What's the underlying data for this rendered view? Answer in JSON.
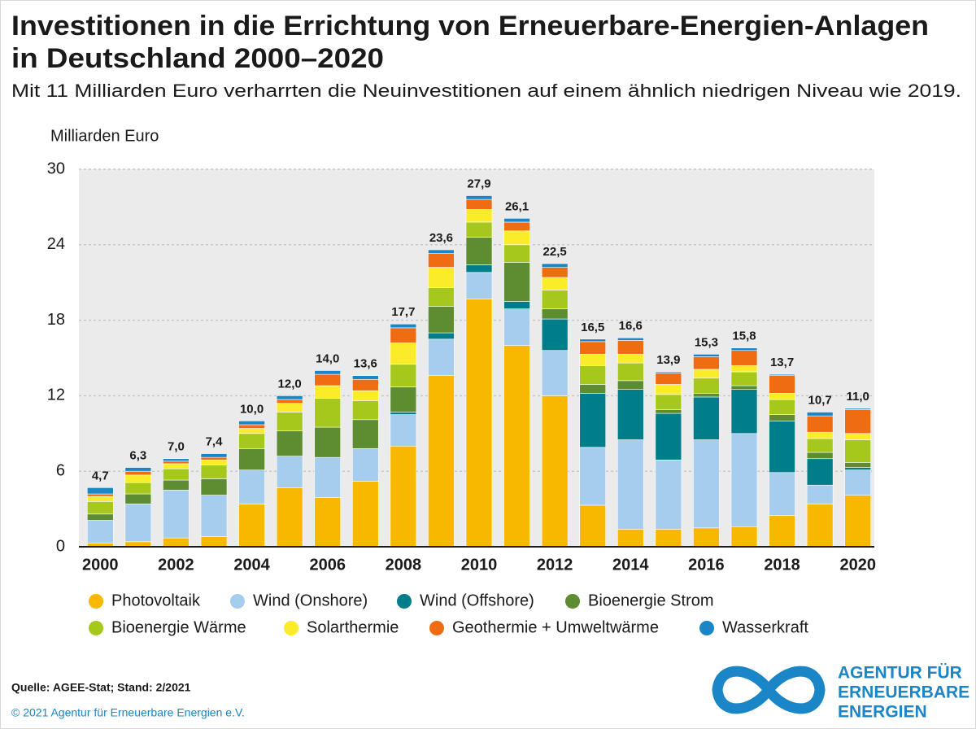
{
  "chart_data": {
    "type": "stacked_bar",
    "title_lines": [
      "Investitionen in die Errichtung von Erneuerbare-Energien-Anlagen",
      "in Deutschland 2000–2020"
    ],
    "subtitle": "Mit 11 Milliarden Euro verharrten die Neuinvestitionen auf einem ähnlich niedrigen Niveau wie 2019.",
    "y_axis_label": "Milliarden Euro",
    "categories": [
      "2000",
      null,
      "2002",
      null,
      "2004",
      null,
      "2006",
      null,
      "2008",
      null,
      "2010",
      null,
      "2012",
      null,
      "2014",
      null,
      "2016",
      null,
      "2018",
      null,
      "2020"
    ],
    "ylim": [
      0,
      30
    ],
    "yticks": [
      0,
      6,
      12,
      18,
      24,
      30
    ],
    "grid": true,
    "series": [
      {
        "name": "Photovoltaik",
        "color": "#f9b800",
        "values": [
          0.3,
          0.4,
          0.7,
          0.8,
          3.4,
          4.7,
          3.9,
          5.2,
          8.0,
          13.6,
          19.7,
          16.0,
          12.0,
          3.3,
          1.4,
          1.4,
          1.5,
          1.6,
          2.5,
          3.4,
          4.1
        ]
      },
      {
        "name": "Wind (Onshore)",
        "color": "#a6cdee",
        "values": [
          1.8,
          3.0,
          3.8,
          3.3,
          2.7,
          2.5,
          3.2,
          2.6,
          2.5,
          2.9,
          2.1,
          2.9,
          3.6,
          4.6,
          7.1,
          5.5,
          7.0,
          7.4,
          3.4,
          1.5,
          2.0
        ]
      },
      {
        "name": "Wind (Offshore)",
        "color": "#007d8a",
        "values": [
          0,
          0,
          0,
          0,
          0,
          0,
          0,
          0,
          0.2,
          0.5,
          0.6,
          0.6,
          2.5,
          4.3,
          4.0,
          3.7,
          3.4,
          3.5,
          4.1,
          2.1,
          0.2
        ]
      },
      {
        "name": "Bioenergie Strom",
        "color": "#5e8c31",
        "values": [
          0.5,
          0.8,
          0.8,
          1.3,
          1.7,
          2.0,
          2.4,
          2.3,
          2.0,
          2.1,
          2.2,
          3.1,
          0.8,
          0.7,
          0.7,
          0.3,
          0.3,
          0.3,
          0.5,
          0.5,
          0.4
        ]
      },
      {
        "name": "Bioenergie Wärme",
        "color": "#a6c81d",
        "values": [
          1.0,
          0.9,
          0.9,
          1.1,
          1.2,
          1.5,
          2.3,
          1.5,
          1.8,
          1.5,
          1.2,
          1.4,
          1.5,
          1.5,
          1.4,
          1.2,
          1.2,
          1.1,
          1.2,
          1.1,
          1.8
        ]
      },
      {
        "name": "Solarthermie",
        "color": "#fbec2a",
        "values": [
          0.4,
          0.6,
          0.4,
          0.4,
          0.4,
          0.7,
          1.0,
          0.8,
          1.7,
          1.6,
          1.0,
          1.1,
          1.0,
          0.9,
          0.7,
          0.8,
          0.7,
          0.5,
          0.5,
          0.5,
          0.5
        ]
      },
      {
        "name": "Geothermie + Umweltwärme",
        "color": "#ef6c12",
        "values": [
          0.2,
          0.3,
          0.2,
          0.2,
          0.3,
          0.3,
          0.9,
          0.9,
          1.2,
          1.1,
          0.8,
          0.7,
          0.8,
          1.0,
          1.1,
          0.9,
          1.0,
          1.2,
          1.4,
          1.3,
          1.9
        ]
      },
      {
        "name": "Wasserkraft",
        "color": "#1a86c8",
        "values": [
          0.5,
          0.3,
          0.2,
          0.3,
          0.3,
          0.3,
          0.3,
          0.3,
          0.3,
          0.3,
          0.3,
          0.3,
          0.3,
          0.2,
          0.2,
          0.1,
          0.2,
          0.2,
          0.1,
          0.3,
          0.1
        ]
      }
    ],
    "totals": [
      4.7,
      6.3,
      7.0,
      7.4,
      10.0,
      12.0,
      14.0,
      13.6,
      17.7,
      23.6,
      27.9,
      26.1,
      22.5,
      16.5,
      16.6,
      13.9,
      15.3,
      15.8,
      13.7,
      10.7,
      11.0
    ],
    "totals_labels": [
      "4,7",
      "6,3",
      "7,0",
      "7,4",
      "10,0",
      "12,0",
      "14,0",
      "13,6",
      "17,7",
      "23,6",
      "27,9",
      "26,1",
      "22,5",
      "16,5",
      "16,6",
      "13,9",
      "15,3",
      "15,8",
      "13,7",
      "10,7",
      "11,0"
    ],
    "source": "Quelle: AGEE-Stat; Stand: 2/2021",
    "copyright": "© 2021 Agentur für Erneuerbare Energien e.V.",
    "logo_lines": [
      "AGENTUR FÜR",
      "ERNEUERBARE",
      "ENERGIEN"
    ]
  }
}
